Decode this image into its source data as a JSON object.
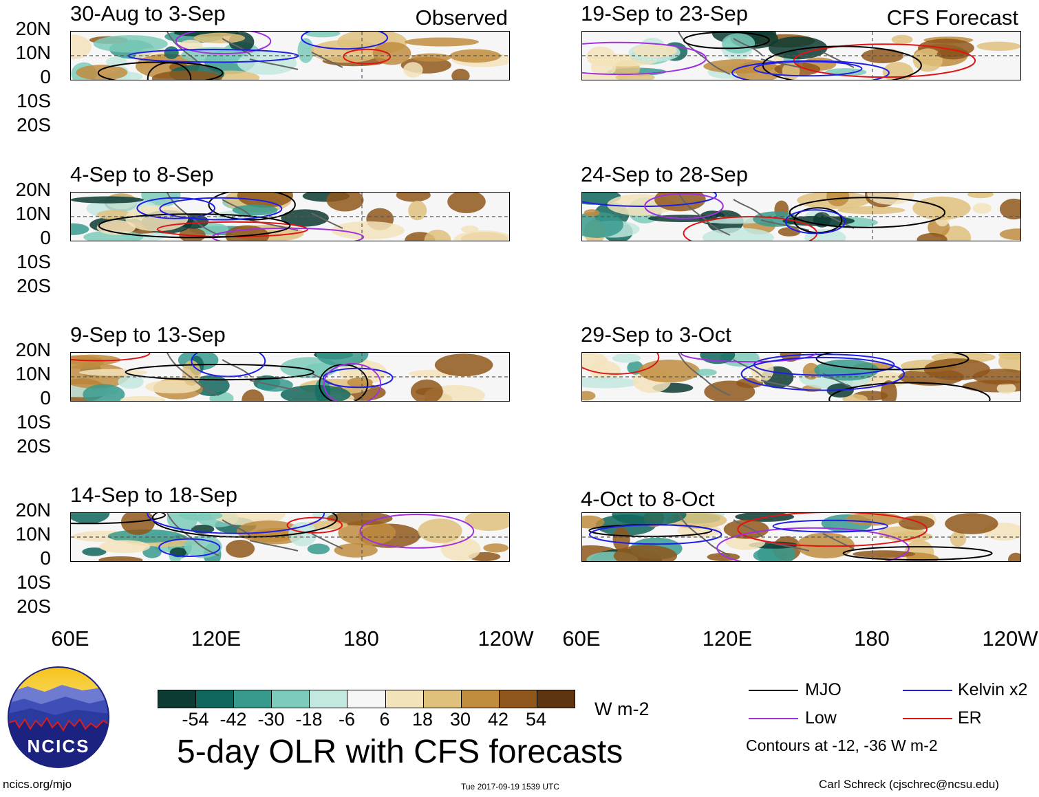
{
  "figure": {
    "title": "5-day OLR with CFS forecasts",
    "site": "ncics.org/mjo",
    "timestamp": "Tue 2017-09-19 1539 UTC",
    "author": "Carl Schreck (cjschrec@ncsu.edu)",
    "logo_text": "NCICS"
  },
  "columns": {
    "observed_tag": "Observed",
    "forecast_tag": "CFS Forecast"
  },
  "panels": {
    "obs": [
      {
        "title": "30-Aug to 3-Sep"
      },
      {
        "title": "4-Sep to 8-Sep"
      },
      {
        "title": "9-Sep to 13-Sep"
      },
      {
        "title": "14-Sep to 18-Sep"
      }
    ],
    "fcst": [
      {
        "title": "19-Sep to 23-Sep"
      },
      {
        "title": "24-Sep to 28-Sep"
      },
      {
        "title": "29-Sep to 3-Oct"
      },
      {
        "title": "4-Oct to 8-Oct"
      }
    ]
  },
  "axes": {
    "lat_labels": [
      "20N",
      "10N",
      "0",
      "10S",
      "20S"
    ],
    "lon_labels": [
      "60E",
      "120E",
      "180",
      "120W"
    ]
  },
  "colorbar": {
    "ticks": [
      "-54",
      "-42",
      "-30",
      "-18",
      "-6",
      "6",
      "18",
      "30",
      "42",
      "54"
    ],
    "colors": [
      "#0c3b33",
      "#10665d",
      "#379a8d",
      "#7ccbbb",
      "#c2e8df",
      "#f6f6f6",
      "#f3e3bb",
      "#dfc17c",
      "#c08c3e",
      "#8f571b",
      "#5e3510"
    ],
    "units": "W m-2"
  },
  "legend": {
    "items": [
      {
        "label": "MJO",
        "color": "#000000"
      },
      {
        "label": "Kelvin x2",
        "color": "#1e1ee6"
      },
      {
        "label": "Low",
        "color": "#a030e0"
      },
      {
        "label": "ER",
        "color": "#e01414"
      }
    ],
    "note": "Contours at -12, -36 W m-2"
  }
}
